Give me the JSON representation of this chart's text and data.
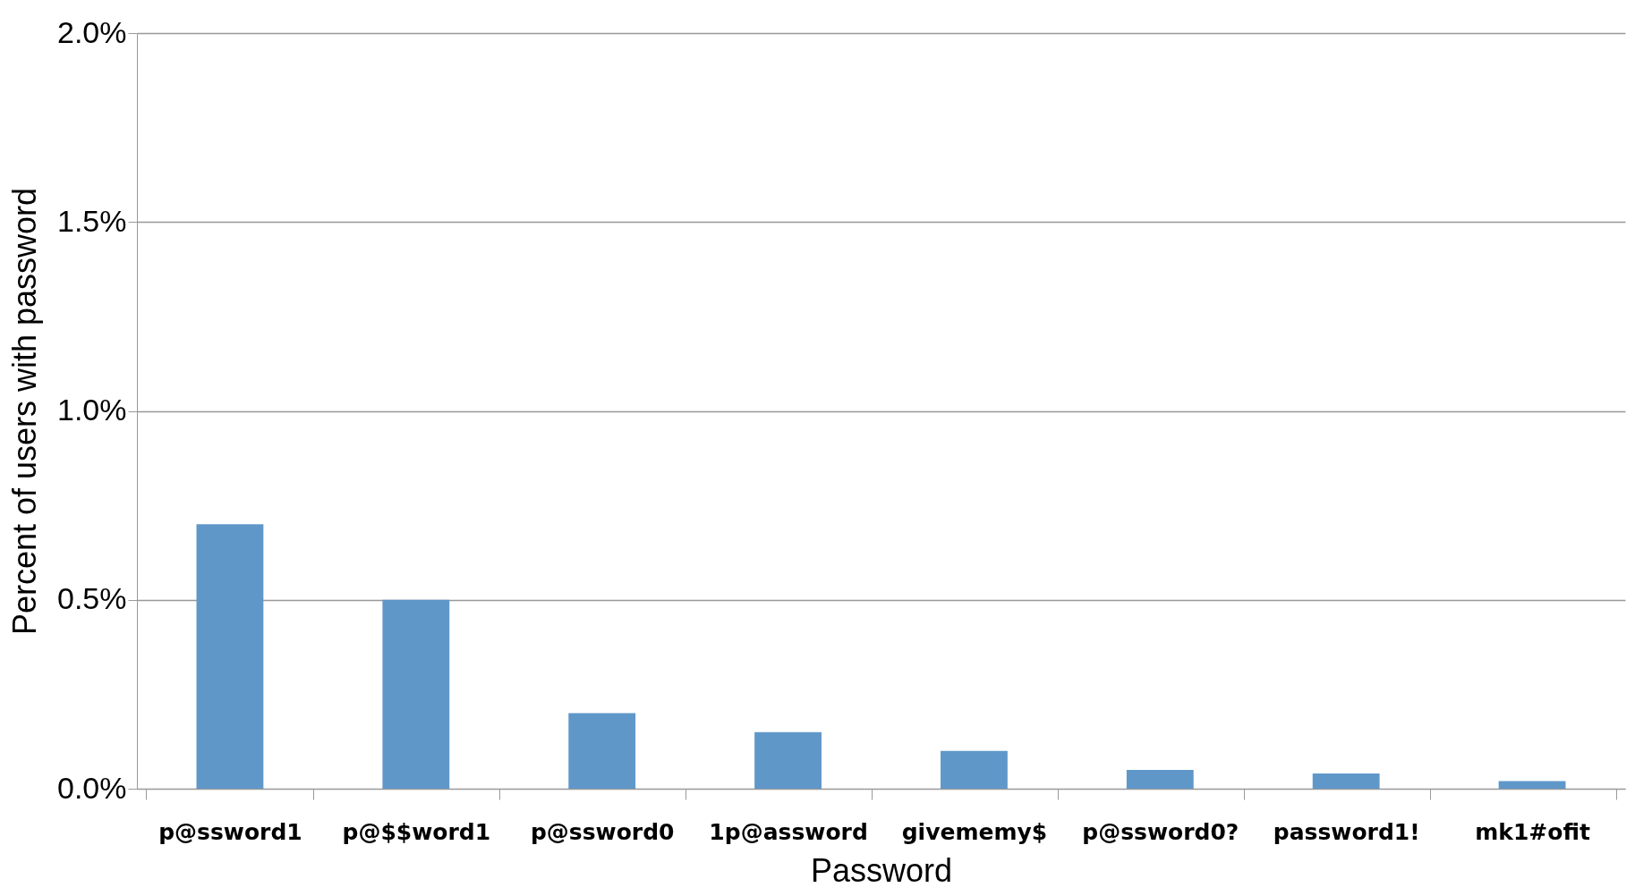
{
  "chart_data": {
    "type": "bar",
    "xlabel": "Password",
    "ylabel": "Percent of users with password",
    "categories": [
      "p@ssword1",
      "p@$$word1",
      "p@ssword0",
      "1p@assword",
      "givememy$",
      "p@ssword0?",
      "password1!",
      "mk1#ofit"
    ],
    "values": [
      0.7,
      0.5,
      0.2,
      0.15,
      0.1,
      0.05,
      0.04,
      0.02
    ],
    "color": "#6097c9",
    "ylim": [
      0,
      2
    ],
    "yticks": [
      {
        "value": 0,
        "label": "0.0%"
      },
      {
        "value": 0.5,
        "label": "0.5%"
      },
      {
        "value": 1,
        "label": "1.0%"
      },
      {
        "value": 1.5,
        "label": "1.5%"
      },
      {
        "value": 2,
        "label": "2.0%"
      }
    ],
    "grid": "y"
  }
}
